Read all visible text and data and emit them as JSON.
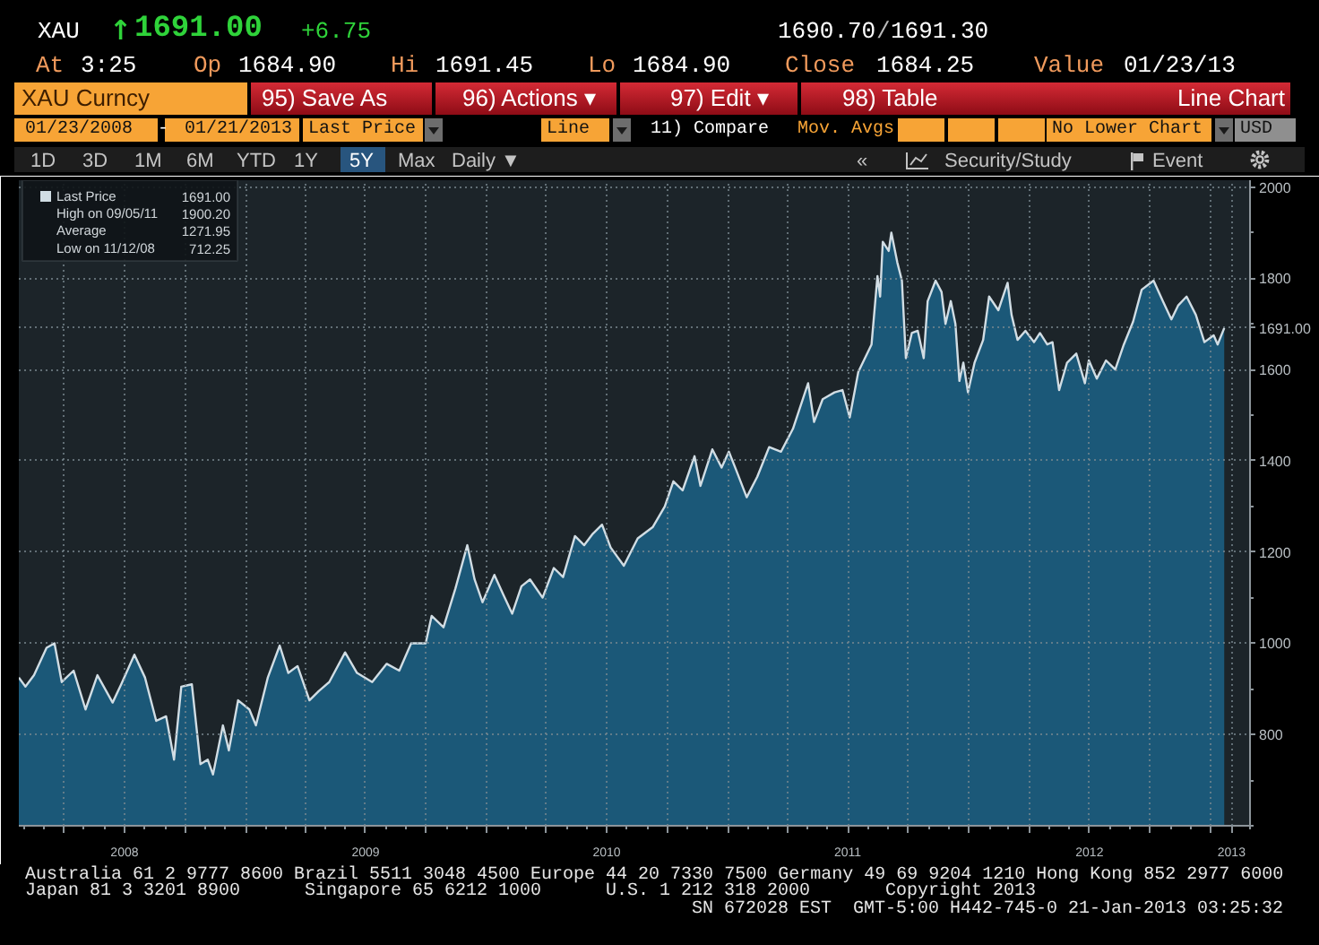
{
  "chart_data": {
    "type": "area",
    "x": [
      "2008-01-23",
      "2008-02-02",
      "2008-02-15",
      "2008-03-05",
      "2008-03-17",
      "2008-03-28",
      "2008-04-15",
      "2008-05-03",
      "2008-05-21",
      "2008-06-13",
      "2008-06-26",
      "2008-07-16",
      "2008-08-01",
      "2008-08-18",
      "2008-09-02",
      "2008-09-14",
      "2008-09-25",
      "2008-10-11",
      "2008-10-24",
      "2008-11-04",
      "2008-11-12",
      "2008-11-27",
      "2008-12-06",
      "2008-12-20",
      "2009-01-06",
      "2009-01-16",
      "2009-02-03",
      "2009-02-21",
      "2009-03-06",
      "2009-03-20",
      "2009-04-07",
      "2009-04-21",
      "2009-05-07",
      "2009-05-31",
      "2009-06-18",
      "2009-07-11",
      "2009-08-02",
      "2009-08-21",
      "2009-09-08",
      "2009-09-30",
      "2009-10-09",
      "2009-10-27",
      "2009-11-14",
      "2009-12-02",
      "2009-12-13",
      "2009-12-25",
      "2010-01-12",
      "2010-01-26",
      "2010-02-08",
      "2010-02-22",
      "2010-03-07",
      "2010-03-26",
      "2010-04-12",
      "2010-04-26",
      "2010-05-14",
      "2010-05-28",
      "2010-06-10",
      "2010-06-24",
      "2010-07-07",
      "2010-07-27",
      "2010-08-17",
      "2010-09-09",
      "2010-09-27",
      "2010-10-10",
      "2010-10-24",
      "2010-11-11",
      "2010-11-20",
      "2010-12-08",
      "2010-12-22",
      "2011-01-02",
      "2011-01-13",
      "2011-01-29",
      "2011-02-14",
      "2011-03-04",
      "2011-03-22",
      "2011-04-09",
      "2011-05-02",
      "2011-05-11",
      "2011-05-24",
      "2011-06-11",
      "2011-06-23",
      "2011-07-04",
      "2011-07-17",
      "2011-08-06",
      "2011-08-15",
      "2011-08-19",
      "2011-08-23",
      "2011-09-01",
      "2011-09-05",
      "2011-09-14",
      "2011-09-21",
      "2011-09-27",
      "2011-10-06",
      "2011-10-15",
      "2011-10-24",
      "2011-10-30",
      "2011-11-11",
      "2011-11-20",
      "2011-11-26",
      "2011-12-04",
      "2011-12-11",
      "2011-12-17",
      "2011-12-23",
      "2011-12-30",
      "2012-01-09",
      "2012-01-22",
      "2012-01-31",
      "2012-02-14",
      "2012-02-28",
      "2012-03-05",
      "2012-03-14",
      "2012-03-26",
      "2012-04-08",
      "2012-04-17",
      "2012-04-28",
      "2012-05-06",
      "2012-05-16",
      "2012-05-28",
      "2012-06-11",
      "2012-06-24",
      "2012-06-30",
      "2012-07-12",
      "2012-07-26",
      "2012-08-09",
      "2012-08-22",
      "2012-09-05",
      "2012-09-18",
      "2012-10-06",
      "2012-10-20",
      "2012-11-02",
      "2012-11-12",
      "2012-11-25",
      "2012-12-09",
      "2012-12-22",
      "2013-01-05",
      "2013-01-11",
      "2013-01-21"
    ],
    "series": [
      {
        "name": "Last Price",
        "color": "#1b5878",
        "values": [
          925,
          905,
          930,
          990,
          1000,
          915,
          940,
          855,
          930,
          870,
          910,
          975,
          925,
          830,
          840,
          745,
          905,
          910,
          735,
          745,
          712.25,
          820,
          765,
          875,
          855,
          820,
          925,
          995,
          935,
          950,
          875,
          895,
          915,
          980,
          935,
          915,
          955,
          940,
          1000,
          1000,
          1060,
          1035,
          1120,
          1215,
          1140,
          1090,
          1150,
          1105,
          1065,
          1125,
          1140,
          1100,
          1165,
          1145,
          1235,
          1215,
          1240,
          1260,
          1210,
          1170,
          1230,
          1255,
          1300,
          1355,
          1335,
          1410,
          1345,
          1425,
          1385,
          1420,
          1380,
          1320,
          1365,
          1430,
          1420,
          1470,
          1570,
          1485,
          1535,
          1550,
          1555,
          1495,
          1595,
          1655,
          1805,
          1760,
          1880,
          1860,
          1900.2,
          1835,
          1795,
          1625,
          1680,
          1685,
          1625,
          1750,
          1795,
          1770,
          1700,
          1750,
          1700,
          1575,
          1615,
          1550,
          1615,
          1665,
          1760,
          1730,
          1790,
          1720,
          1665,
          1685,
          1660,
          1680,
          1655,
          1660,
          1555,
          1615,
          1635,
          1570,
          1620,
          1580,
          1620,
          1600,
          1655,
          1705,
          1775,
          1795,
          1750,
          1710,
          1740,
          1760,
          1720,
          1660,
          1675,
          1655,
          1691
        ]
      }
    ],
    "xlim": [
      "2008-01-23",
      "2013-03-01"
    ],
    "ylim": [
      600,
      2015
    ],
    "xticks": [
      {
        "value": "2008-04-01",
        "label": null
      },
      {
        "value": "2008-07-01",
        "label": "2008"
      },
      {
        "value": "2008-10-01",
        "label": null
      },
      {
        "value": "2009-01-01",
        "label": null
      },
      {
        "value": "2009-04-01",
        "label": null
      },
      {
        "value": "2009-07-01",
        "label": "2009"
      },
      {
        "value": "2009-10-01",
        "label": null
      },
      {
        "value": "2010-01-01",
        "label": null
      },
      {
        "value": "2010-04-01",
        "label": null
      },
      {
        "value": "2010-07-01",
        "label": "2010"
      },
      {
        "value": "2010-10-01",
        "label": null
      },
      {
        "value": "2011-01-01",
        "label": null
      },
      {
        "value": "2011-04-01",
        "label": null
      },
      {
        "value": "2011-07-01",
        "label": "2011"
      },
      {
        "value": "2011-10-01",
        "label": null
      },
      {
        "value": "2012-01-01",
        "label": null
      },
      {
        "value": "2012-04-01",
        "label": null
      },
      {
        "value": "2012-07-01",
        "label": "2012"
      },
      {
        "value": "2012-10-01",
        "label": null
      },
      {
        "value": "2013-01-01",
        "label": null
      },
      {
        "value": "2013-02-01",
        "label": "2013"
      }
    ],
    "yticks": [
      800,
      1000,
      1200,
      1400,
      1600,
      {
        "value": 1691,
        "label": "1691.00"
      },
      1800,
      2000
    ],
    "grid": true,
    "legend": "top left",
    "annotations": [
      "XAU",
      "↑",
      "1691.00",
      "+6.75",
      "1690.70",
      "/",
      "1691.30",
      "At",
      "3:25",
      "Op",
      "1684.90",
      "Hi",
      "1691.45",
      "Lo",
      "1684.90",
      "Close",
      "1684.25",
      "Value",
      "01/23/13",
      "XAU Curncy",
      "95) Save As",
      "96) Actions ▾",
      "97) Edit ▾",
      "98) Table",
      "Line Chart",
      "01/23/2008",
      "-",
      "01/21/2013",
      "Last Price",
      "Line",
      "11) Compare",
      "Mov. Avgs",
      "No Lower Chart",
      "USD",
      "1D",
      "3D",
      "1M",
      "6M",
      "YTD",
      "1Y",
      "5Y",
      "Max",
      "Daily ▼",
      "«",
      "Security/Study",
      "Event",
      "1691.00",
      "High on 09/05/11",
      "1900.20",
      "Average",
      "1271.95",
      "Low on 11/12/08",
      "712.25",
      "Australia 61 2 9777 8600 Brazil 5511 3048 4500 Europe 44 20 7330 7500 Germany 49 69 9204 1210 Hong Kong 852 2977 6000",
      "Japan 81 3 3201 8900",
      "Singapore 65 6212 1000",
      "U.S. 1 212 318 2000",
      "Copyright 2013",
      "SN 672028 EST  GMT-5:00 H442-745-0 21-Jan-2013 03:25:32"
    ]
  }
}
